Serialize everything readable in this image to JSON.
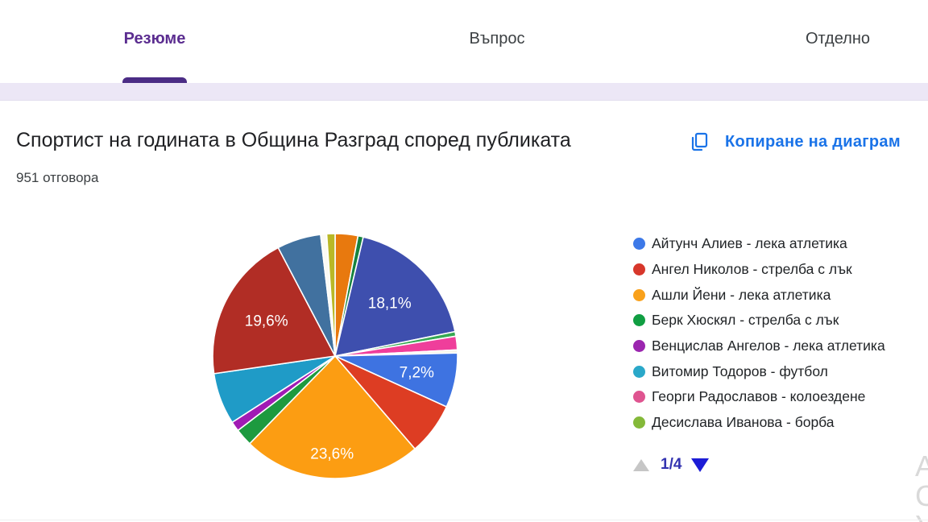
{
  "tabs": {
    "summary": "Резюме",
    "question": "Въпрос",
    "individual": "Отделно",
    "active_color": "#5b2d90",
    "underline_color": "#4b2c85"
  },
  "question": {
    "title": "Спортист на годината в Община Разград според публиката",
    "responses": "951 отговора"
  },
  "copy_button": {
    "label": "Копиране на диаграм",
    "icon": "copy-icon",
    "color": "#1a73e8"
  },
  "chart_data": {
    "type": "pie",
    "title": "Спортист на годината в Община Разград според публиката",
    "total_responses": 951,
    "start_angle_deg": 0,
    "direction": "clockwise",
    "legend_position": "right",
    "slices": [
      {
        "color": "#e8790e",
        "value": 3.0
      },
      {
        "color": "#16833e",
        "value": 0.7
      },
      {
        "color": "#3e4fae",
        "value": 18.1,
        "label": "18,1%",
        "label_r": 0.62
      },
      {
        "color": "#36a852",
        "value": 0.6
      },
      {
        "color": "#ef3e9b",
        "value": 1.8
      },
      {
        "color": "#f7f4e8",
        "value": 0.4
      },
      {
        "color": "#3e73e1",
        "value": 7.2,
        "label": "7,2%",
        "label_r": 0.68
      },
      {
        "color": "#dd3d23",
        "value": 6.9
      },
      {
        "color": "#fc9d12",
        "value": 23.6,
        "label": "23,6%",
        "label_r": 0.8
      },
      {
        "color": "#1d9a3f",
        "value": 2.3
      },
      {
        "color": "#a01bb4",
        "value": 1.3
      },
      {
        "color": "#1f9bc7",
        "value": 6.8
      },
      {
        "color": "#b12d25",
        "value": 19.6,
        "label": "19,6%",
        "label_r": 0.63
      },
      {
        "color": "#41719f",
        "value": 5.8
      },
      {
        "color": "#fbfaf4",
        "value": 0.8
      },
      {
        "color": "#b9b827",
        "value": 1.1
      }
    ]
  },
  "legend": {
    "items": [
      {
        "label": "Айтунч Алиев - лека атлетика",
        "color": "#3d79e8"
      },
      {
        "label": "Ангел Николов - стрелба с лък",
        "color": "#d7372b"
      },
      {
        "label": "Ашли Йени - лека атлетика",
        "color": "#f9a11b"
      },
      {
        "label": "Берк Хюскял - стрелба с лък",
        "color": "#109e42"
      },
      {
        "label": "Венцислав Ангелов - лека атлетика",
        "color": "#9b26af"
      },
      {
        "label": "Витомир Тодоров - футбол",
        "color": "#2aa8c9"
      },
      {
        "label": "Георги Радославов - колоездене",
        "color": "#df5490"
      },
      {
        "label": "Десислава Иванова - борба",
        "color": "#84b939"
      }
    ]
  },
  "pagination": {
    "current": "1/4",
    "up_color": "#c6c6c6",
    "down_color": "#1c1cd6"
  },
  "edge_fragments": {
    "f0": "А",
    "f1": "С",
    "f2": "У"
  }
}
